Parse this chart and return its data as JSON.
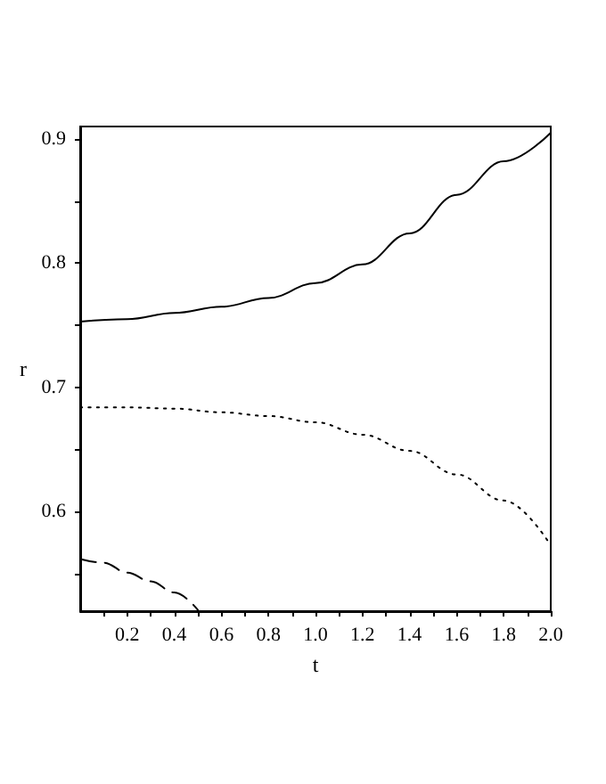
{
  "chart_data": {
    "type": "line",
    "xlabel": "t",
    "ylabel": "r",
    "x": [
      0,
      0.2,
      0.4,
      0.6,
      0.8,
      1.0,
      1.2,
      1.4,
      1.6,
      1.8,
      2.0
    ],
    "series": [
      {
        "color": "#000000",
        "line_style": "solid",
        "values": [
          0.753,
          0.755,
          0.76,
          0.765,
          0.772,
          0.784,
          0.799,
          0.824,
          0.855,
          0.882,
          0.905
        ]
      },
      {
        "color": "#000000",
        "line_style": "dotted",
        "values": [
          0.684,
          0.684,
          0.683,
          0.68,
          0.677,
          0.672,
          0.662,
          0.649,
          0.63,
          0.609,
          0.573
        ]
      },
      {
        "color": "#000000",
        "line_style": "dashed",
        "x": [
          0,
          0.1,
          0.2,
          0.3,
          0.4,
          0.5
        ],
        "values": [
          0.562,
          0.559,
          0.551,
          0.544,
          0.535,
          0.521
        ]
      }
    ],
    "xlim": [
      0,
      2
    ],
    "ylim": [
      0.52,
      0.91
    ],
    "xticks": [
      {
        "value": 0.1,
        "label": null
      },
      0.2,
      {
        "value": 0.3,
        "label": null
      },
      0.4,
      {
        "value": 0.5,
        "label": null
      },
      0.6,
      {
        "value": 0.7,
        "label": null
      },
      0.8,
      {
        "value": 0.9,
        "label": null
      },
      {
        "value": 1,
        "label": "1.0"
      },
      {
        "value": 1.1,
        "label": null
      },
      1.2,
      {
        "value": 1.3,
        "label": null
      },
      1.4,
      {
        "value": 1.5,
        "label": null
      },
      1.6,
      {
        "value": 1.7,
        "label": null
      },
      1.8,
      {
        "value": 1.9,
        "label": null
      },
      {
        "value": 2,
        "label": "2.0"
      }
    ],
    "yticks": [
      {
        "value": 0.55,
        "label": null
      },
      0.6,
      {
        "value": 0.65,
        "label": null
      },
      0.7,
      {
        "value": 0.75,
        "label": null
      },
      0.8,
      {
        "value": 0.85,
        "label": null
      },
      0.9
    ],
    "marker": "none"
  }
}
